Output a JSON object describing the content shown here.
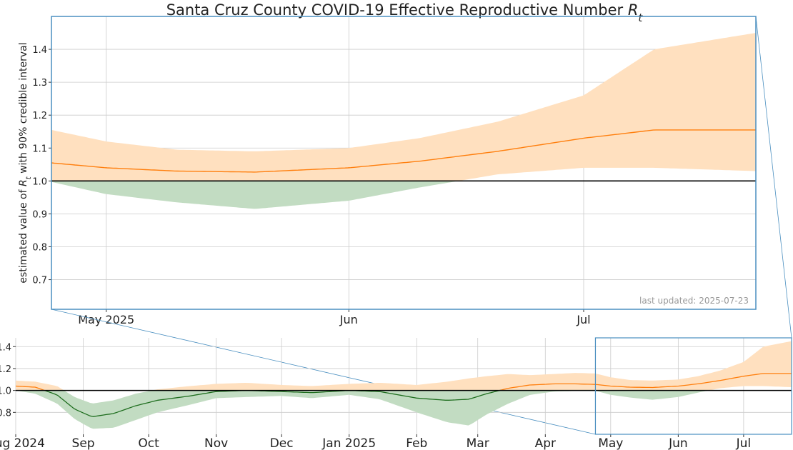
{
  "chart_data": {
    "type": "area",
    "title": "Santa Cruz County COVID-19 Effective Reproductive Number",
    "title_symbol": "R",
    "title_symbol_sub": "t",
    "ylabel_prefix": "estimated value of",
    "ylabel_symbol": "R",
    "ylabel_symbol_sub": "t",
    "ylabel_suffix": "with 90% credible interval",
    "last_updated": "last updated: 2025-07-23",
    "reference_line": 1.0,
    "colors": {
      "estimate_line": "#ff7f0e",
      "estimate_line_below": "#1f6e1f",
      "band_above": "#ffe0bf",
      "band_below": "#c2dcc2",
      "reference": "#000000",
      "zoom_box": "#4a8fc0",
      "grid": "#cccccc"
    },
    "main_panel": {
      "xlim": [
        "2025-04-24",
        "2025-07-23"
      ],
      "ylim": [
        0.61,
        1.5
      ],
      "yticks": [
        0.7,
        0.8,
        0.9,
        1.0,
        1.1,
        1.2,
        1.3,
        1.4
      ],
      "ytick_labels": [
        "0.7",
        "0.8",
        "0.9",
        "1.0",
        "1.1",
        "1.2",
        "1.3",
        "1.4"
      ],
      "xticks": [
        "2025-05-01",
        "2025-06-01",
        "2025-07-01"
      ],
      "xtick_labels": [
        "May 2025",
        "Jun",
        "Jul"
      ],
      "grid": true
    },
    "overview_panel": {
      "xlim": [
        "2024-08-01",
        "2025-07-23"
      ],
      "ylim": [
        0.6,
        1.48
      ],
      "yticks": [
        0.8,
        1.0,
        1.2,
        1.4
      ],
      "ytick_labels": [
        "0.8",
        "1.0",
        "1.2",
        "1.4"
      ],
      "xticks": [
        "2024-08-01",
        "2024-09-01",
        "2024-10-01",
        "2024-11-01",
        "2024-12-01",
        "2025-01-01",
        "2025-02-01",
        "2025-03-01",
        "2025-04-01",
        "2025-05-01",
        "2025-06-01",
        "2025-07-01"
      ],
      "xtick_labels": [
        "Aug 2024",
        "Sep",
        "Oct",
        "Nov",
        "Dec",
        "Jan 2025",
        "Feb",
        "Mar",
        "Apr",
        "May",
        "Jun",
        "Jul"
      ],
      "zoom_window": [
        "2025-04-24",
        "2025-07-23"
      ],
      "grid": true
    },
    "series": [
      {
        "x": [
          "2024-08-01",
          "2024-08-10",
          "2024-08-20",
          "2024-08-28",
          "2024-09-05",
          "2024-09-15",
          "2024-09-25",
          "2024-10-05",
          "2024-10-20",
          "2024-11-01",
          "2024-11-15",
          "2024-12-01",
          "2024-12-15",
          "2025-01-01",
          "2025-01-15",
          "2025-02-01",
          "2025-02-15",
          "2025-02-25",
          "2025-03-05",
          "2025-03-15",
          "2025-03-25",
          "2025-04-05",
          "2025-04-15",
          "2025-04-24",
          "2025-05-01",
          "2025-05-10",
          "2025-05-20",
          "2025-06-01",
          "2025-06-10",
          "2025-06-20",
          "2025-07-01",
          "2025-07-10",
          "2025-07-23"
        ],
        "y": [
          1.04,
          1.03,
          0.96,
          0.83,
          0.76,
          0.79,
          0.86,
          0.91,
          0.95,
          0.99,
          1.0,
          0.99,
          0.98,
          1.0,
          0.99,
          0.93,
          0.91,
          0.92,
          0.97,
          1.02,
          1.05,
          1.06,
          1.06,
          1.055,
          1.04,
          1.03,
          1.027,
          1.04,
          1.06,
          1.09,
          1.13,
          1.155,
          1.155
        ],
        "lower": [
          1.0,
          0.97,
          0.88,
          0.74,
          0.65,
          0.66,
          0.73,
          0.8,
          0.87,
          0.93,
          0.94,
          0.95,
          0.93,
          0.96,
          0.92,
          0.8,
          0.71,
          0.68,
          0.78,
          0.88,
          0.96,
          0.99,
          0.995,
          0.997,
          0.96,
          0.935,
          0.915,
          0.94,
          0.98,
          1.02,
          1.04,
          1.04,
          1.03
        ],
        "upper": [
          1.09,
          1.08,
          1.04,
          0.94,
          0.88,
          0.91,
          0.97,
          1.01,
          1.04,
          1.06,
          1.07,
          1.05,
          1.04,
          1.06,
          1.07,
          1.05,
          1.08,
          1.11,
          1.13,
          1.15,
          1.14,
          1.15,
          1.16,
          1.155,
          1.12,
          1.095,
          1.09,
          1.1,
          1.13,
          1.18,
          1.26,
          1.4,
          1.45
        ]
      }
    ]
  }
}
